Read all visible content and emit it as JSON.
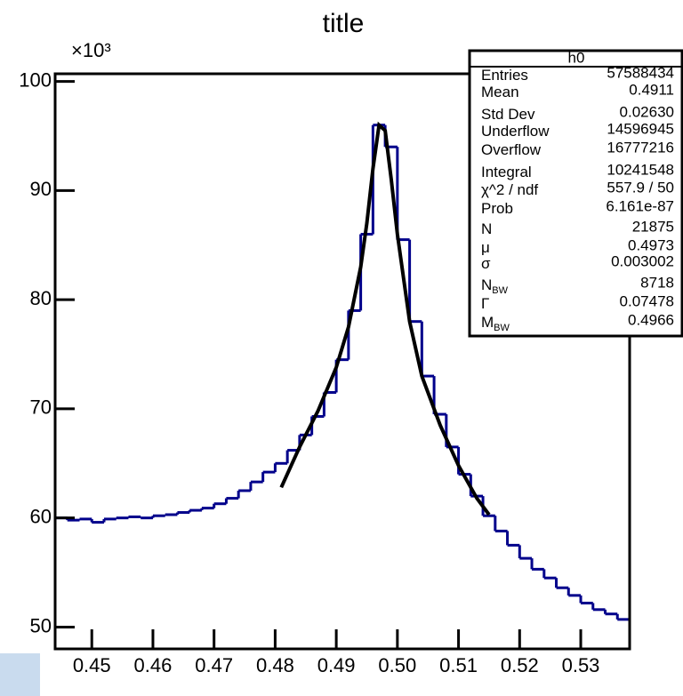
{
  "chart_data": {
    "type": "histogram",
    "title": "title",
    "y_exponent": "×10³",
    "bins": [
      0.444,
      0.446,
      0.448,
      0.45,
      0.452,
      0.454,
      0.456,
      0.458,
      0.46,
      0.462,
      0.464,
      0.466,
      0.468,
      0.47,
      0.472,
      0.474,
      0.476,
      0.478,
      0.48,
      0.482,
      0.484,
      0.486,
      0.488,
      0.49,
      0.492,
      0.494,
      0.496,
      0.498,
      0.5,
      0.502,
      0.504,
      0.506,
      0.508,
      0.51,
      0.512,
      0.514,
      0.516,
      0.518,
      0.52,
      0.522,
      0.524,
      0.526,
      0.528,
      0.53,
      0.532,
      0.534,
      0.536,
      0.538
    ],
    "values": [
      60.0,
      59.8,
      59.9,
      59.6,
      59.9,
      60.0,
      60.1,
      60.0,
      60.2,
      60.3,
      60.5,
      60.7,
      60.9,
      61.3,
      61.8,
      62.5,
      63.3,
      64.2,
      65.0,
      66.2,
      67.6,
      69.3,
      71.5,
      74.5,
      79.0,
      86.0,
      96.0,
      94.0,
      85.5,
      78.0,
      73.0,
      69.5,
      66.5,
      64.0,
      62.0,
      60.2,
      58.8,
      57.5,
      56.3,
      55.3,
      54.5,
      53.6,
      52.9,
      52.2,
      51.6,
      51.2,
      50.7
    ],
    "color": "#00008b",
    "fit": {
      "color": "#000000",
      "x": [
        0.481,
        0.484,
        0.487,
        0.49,
        0.492,
        0.494,
        0.495,
        0.496,
        0.497,
        0.498,
        0.499,
        0.5,
        0.502,
        0.504,
        0.507,
        0.51,
        0.513,
        0.515
      ],
      "values": [
        62.8,
        66.5,
        69.8,
        73.8,
        77.5,
        83,
        87,
        92,
        96,
        95.5,
        91,
        86,
        78,
        73,
        68.5,
        64.8,
        61.8,
        60.3
      ]
    },
    "xlim": [
      0.444,
      0.538
    ],
    "xticks": [
      0.45,
      0.46,
      0.47,
      0.48,
      0.49,
      {
        "value": 0.5,
        "label": "0.50"
      },
      0.51,
      0.52,
      0.53
    ],
    "ylim": [
      48,
      100.7
    ],
    "yticks": [
      50,
      60,
      70,
      80,
      90,
      100
    ],
    "stats": {
      "name": "h0",
      "rows": [
        {
          "label": "Entries",
          "value": "57588434"
        },
        {
          "label": "Mean",
          "value": "0.4911"
        },
        {
          "label": "Std Dev",
          "value": "0.02630"
        },
        {
          "label": "Underflow",
          "value": "14596945"
        },
        {
          "label": "Overflow",
          "value": "16777216"
        },
        {
          "label": "Integral",
          "value": "10241548"
        },
        {
          "label": "χ^2 / ndf",
          "value": "557.9 / 50"
        },
        {
          "label": "Prob",
          "value": "6.161e-87"
        },
        {
          "label": "N",
          "value": "21875"
        },
        {
          "label": "μ",
          "value": "0.4973"
        },
        {
          "label": "σ",
          "value": "0.003002"
        },
        {
          "label": "N",
          "sub": "BW",
          "value": "8718"
        },
        {
          "label": "Γ",
          "value": "0.07478"
        },
        {
          "label": "M",
          "sub": "BW",
          "value": "0.4966"
        }
      ]
    }
  }
}
